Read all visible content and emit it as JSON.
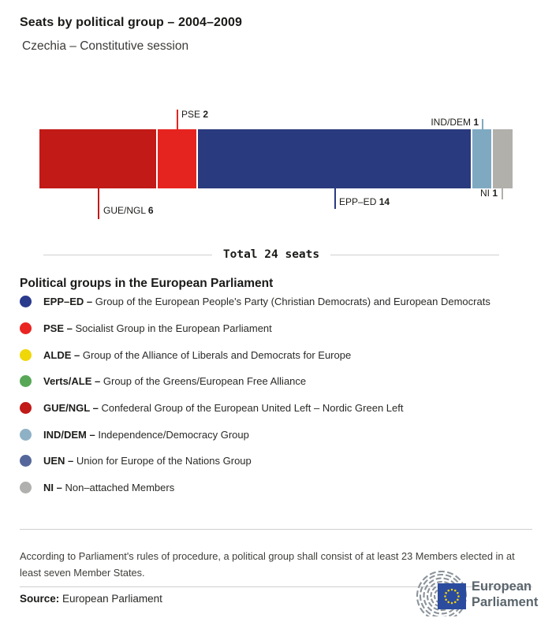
{
  "header": {
    "title": "Seats by political group – 2004–2009",
    "subtitle": "Czechia – Constitutive session"
  },
  "chart_data": {
    "type": "bar",
    "orientation": "horizontal-stacked",
    "title": "Seats by political group – 2004–2009",
    "subtitle": "Czechia – Constitutive session",
    "total_seats": 24,
    "total_label": "Total 24 seats",
    "series": [
      {
        "group": "GUE/NGL",
        "seats": 6,
        "color": "#c11a17",
        "label_side": "bottom"
      },
      {
        "group": "PSE",
        "seats": 2,
        "color": "#e6241f",
        "label_side": "top"
      },
      {
        "group": "EPP–ED",
        "seats": 14,
        "color": "#2a3a7e",
        "label_side": "bottom"
      },
      {
        "group": "IND/DEM",
        "seats": 1,
        "color": "#7fa9c1",
        "label_side": "top"
      },
      {
        "group": "NI",
        "seats": 1,
        "color": "#b2b0ab",
        "label_side": "bottom"
      }
    ],
    "legend_position": "below",
    "grid": false
  },
  "legend": {
    "heading": "Political groups in the European Parliament",
    "separator": "–",
    "items": [
      {
        "abbr": "EPP–ED",
        "name": "Group of the European People's Party (Christian Democrats) and European Democrats",
        "color": "#2a3a8c"
      },
      {
        "abbr": "PSE",
        "name": "Socialist Group in the European Parliament",
        "color": "#ea2420"
      },
      {
        "abbr": "ALDE",
        "name": "Group of the Alliance of Liberals and Democrats for Europe",
        "color": "#efd708"
      },
      {
        "abbr": "Verts/ALE",
        "name": "Group of the Greens/European Free Alliance",
        "color": "#57a757"
      },
      {
        "abbr": "GUE/NGL",
        "name": "Confederal Group of the European United Left – Nordic Green Left",
        "color": "#c11a17"
      },
      {
        "abbr": "IND/DEM",
        "name": "Independence/Democracy Group",
        "color": "#8fb1c6"
      },
      {
        "abbr": "UEN",
        "name": "Union for Europe of the Nations Group",
        "color": "#55679a"
      },
      {
        "abbr": "NI",
        "name": "Non–attached Members",
        "color": "#b0b0ae"
      }
    ]
  },
  "footnote": "According to Parliament's rules of procedure, a political group shall consist of at least 23 Members elected in at least seven Member States.",
  "source": {
    "label": "Source:",
    "value": "European Parliament"
  },
  "logo": {
    "line1": "European",
    "line2": "Parliament",
    "flag_color": "#2b4c9e",
    "star_color": "#f4d10e",
    "arc_color": "#8b939b",
    "text_color": "#5a656d"
  }
}
